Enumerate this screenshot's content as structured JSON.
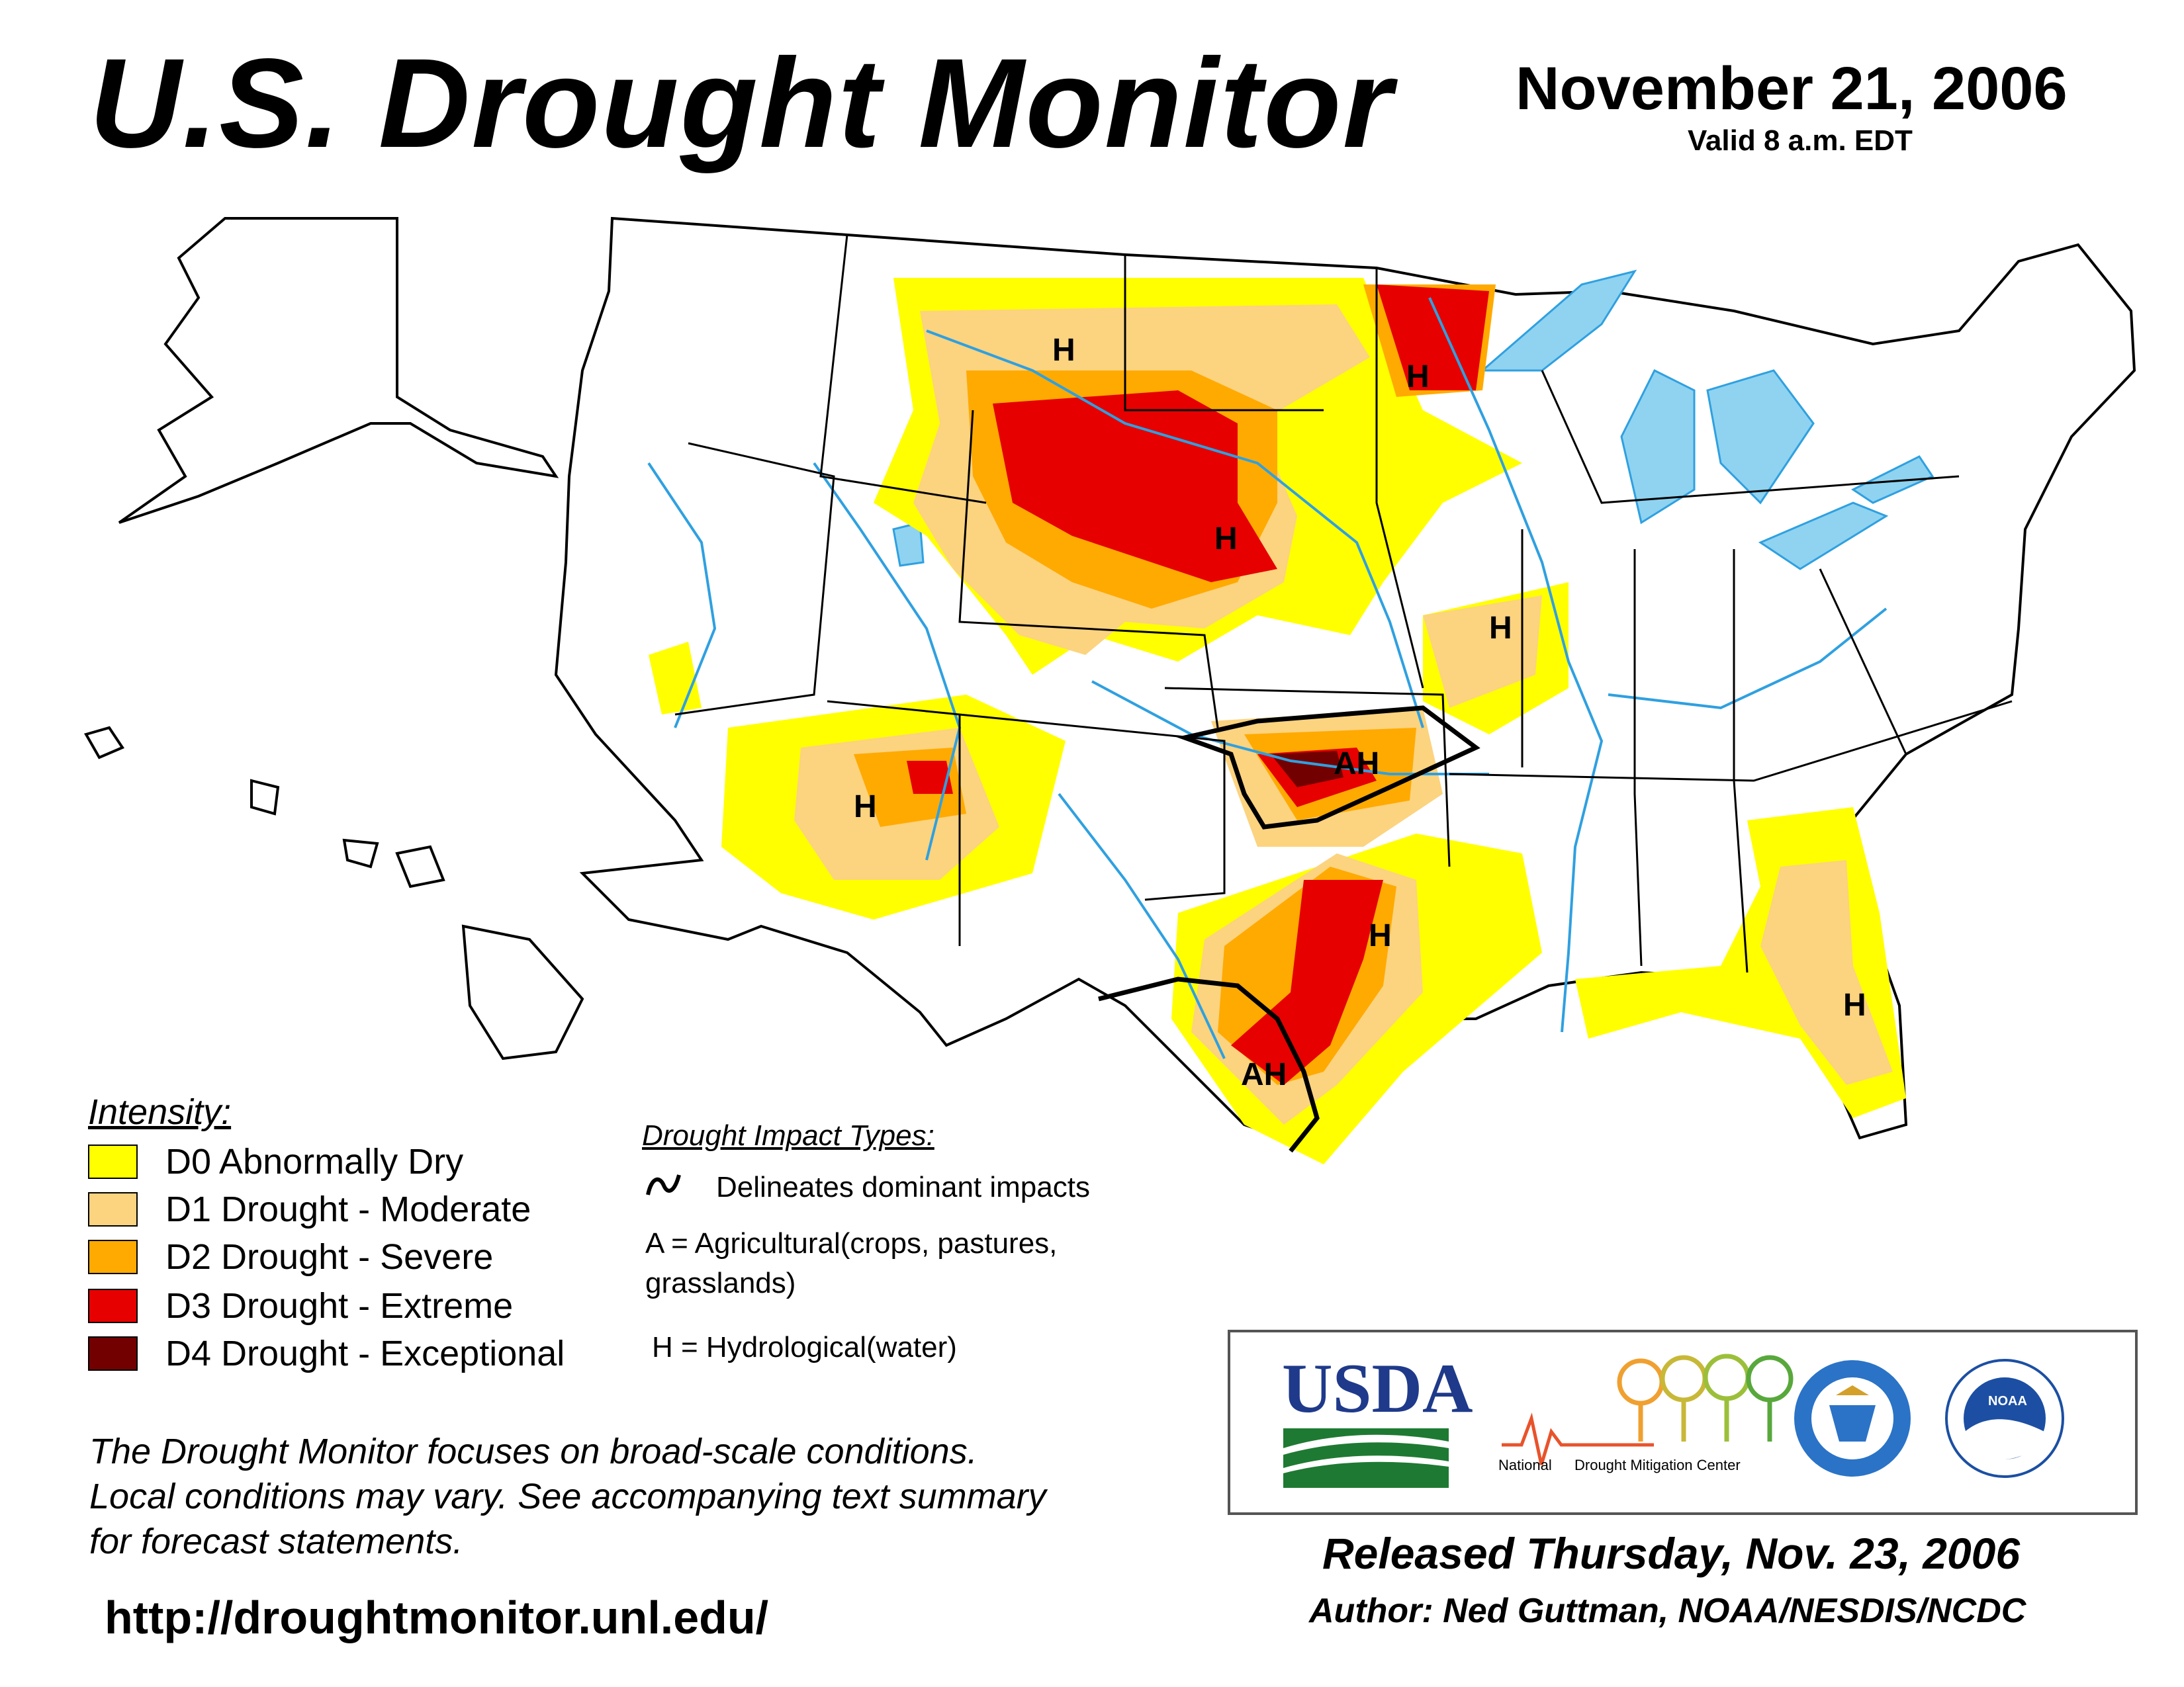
{
  "header": {
    "title": "U.S. Drought Monitor",
    "date": "November 21, 2006",
    "valid": "Valid 8 a.m. EDT"
  },
  "legend": {
    "title": "Intensity:",
    "items": [
      {
        "label": "D0 Abnormally Dry",
        "color": "#ffff00"
      },
      {
        "label": "D1 Drought - Moderate",
        "color": "#fcd37f"
      },
      {
        "label": "D2 Drought - Severe",
        "color": "#ffaa00"
      },
      {
        "label": "D3 Drought - Extreme",
        "color": "#e60000"
      },
      {
        "label": "D4 Drought - Exceptional",
        "color": "#730000"
      }
    ]
  },
  "impacts": {
    "title": "Drought Impact Types:",
    "line_label": "Delineates dominant impacts",
    "a_label": "A = Agricultural(crops, pastures,",
    "a_label_2": "grasslands)",
    "h_label": "H = Hydrological(water)"
  },
  "map_labels": [
    "H",
    "H",
    "H",
    "H",
    "H",
    "AH",
    "H",
    "AH",
    "H"
  ],
  "note": {
    "line1": "The Drought Monitor focuses on broad-scale conditions.",
    "line2": "Local conditions may vary. See accompanying text summary",
    "line3": "for forecast statements."
  },
  "url": "http://droughtmonitor.unl.edu/",
  "logos": {
    "usda": "USDA",
    "ndmc_1": "National",
    "ndmc_2": "Drought Mitigation Center",
    "noaa": "NOAA"
  },
  "footer": {
    "released": "Released Thursday, Nov. 23, 2006",
    "author": "Author: Ned Guttman, NOAA/NESDIS/NCDC"
  },
  "colors": {
    "water": "#8fd3f0",
    "river": "#2fa0e0",
    "boundary": "#000000",
    "county": "#999999"
  }
}
